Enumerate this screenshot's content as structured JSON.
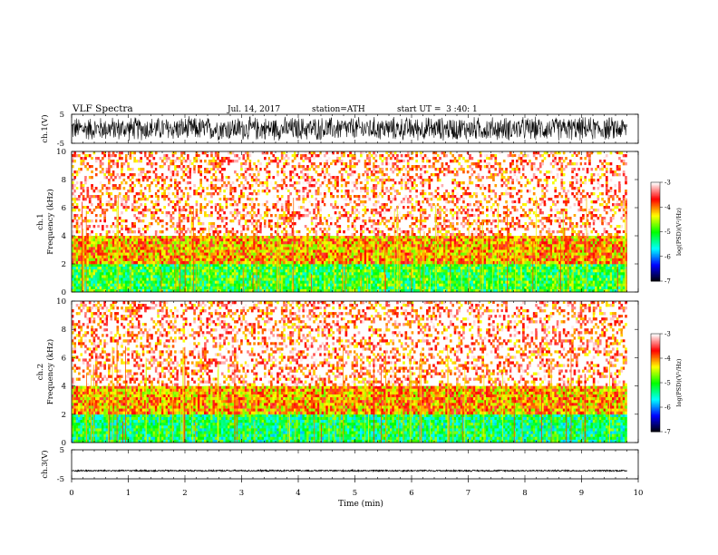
{
  "header": {
    "title": "VLF Spectra",
    "date": "Jul. 14, 2017",
    "station": "station=ATH",
    "start": "start UT =  3 :40: 1"
  },
  "chart_data": [
    {
      "type": "line",
      "ylabel": "ch.1(V)",
      "ylim": [
        -5,
        5
      ],
      "yticks": [
        "5",
        "-5"
      ],
      "xlim": [
        0,
        10
      ],
      "description_values": {
        "amplitude_min": -4.5,
        "amplitude_max": 4.5
      }
    },
    {
      "type": "heatmap",
      "ylabel": "ch.1\nFrequency (kHz)",
      "ylabel_lines": [
        "ch.1",
        "Frequency (kHz)"
      ],
      "ylim": [
        0,
        10
      ],
      "yticks": [
        "0",
        "2",
        "4",
        "6",
        "8",
        "10"
      ],
      "xlim": [
        0,
        9.8
      ],
      "colorbar": {
        "label": "log(PSD)(V²/Hz)",
        "range": [
          -7,
          -3
        ],
        "ticks": [
          "-3",
          "-4",
          "-5",
          "-6",
          "-7"
        ],
        "colors": [
          "#000000",
          "#0000ff",
          "#00ffff",
          "#00ff00",
          "#ffff00",
          "#ff0000",
          "#ffffff"
        ]
      },
      "bands": [
        {
          "freq_range": [
            0,
            2
          ],
          "level": -5.0
        },
        {
          "freq_range": [
            2,
            4
          ],
          "level": -4.1
        },
        {
          "freq_range": [
            4,
            10
          ],
          "level": -3.6
        }
      ]
    },
    {
      "type": "heatmap",
      "ylabel": "ch.2\nFrequency (kHz)",
      "ylabel_lines": [
        "ch.2",
        "Frequency (kHz)"
      ],
      "ylim": [
        0,
        10
      ],
      "yticks": [
        "0",
        "2",
        "4",
        "6",
        "8",
        "10"
      ],
      "xlim": [
        0,
        9.8
      ],
      "colorbar": {
        "label": "log(PSD)(V²/Hz)",
        "range": [
          -7,
          -3
        ],
        "ticks": [
          "-3",
          "-4",
          "-5",
          "-6",
          "-7"
        ],
        "colors": [
          "#000000",
          "#0000ff",
          "#00ffff",
          "#00ff00",
          "#ffff00",
          "#ff0000",
          "#ffffff"
        ]
      },
      "bands": [
        {
          "freq_range": [
            0,
            2
          ],
          "level": -5.2
        },
        {
          "freq_range": [
            2,
            4
          ],
          "level": -4.1
        },
        {
          "freq_range": [
            4,
            10
          ],
          "level": -3.6
        }
      ]
    },
    {
      "type": "line",
      "ylabel": "ch.3(V)",
      "ylim": [
        -5,
        5
      ],
      "yticks": [
        "5",
        "-5"
      ],
      "xlim": [
        0,
        10
      ],
      "description_values": {
        "amplitude_min": -0.3,
        "amplitude_max": 0.3,
        "offset": -2.2
      }
    }
  ],
  "xaxis": {
    "label": "Time (min)",
    "ticks": [
      "0",
      "1",
      "2",
      "3",
      "4",
      "5",
      "6",
      "7",
      "8",
      "9",
      "10"
    ]
  }
}
